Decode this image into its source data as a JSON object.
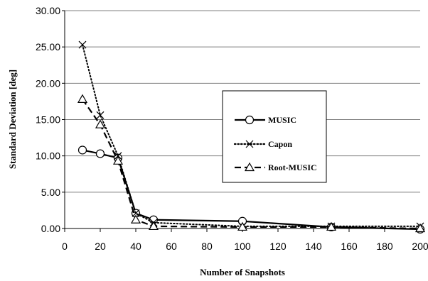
{
  "chart_data": {
    "type": "line",
    "title": "",
    "xlabel": "Number of Snapshots",
    "ylabel": "Standard  Deviation  [deg]",
    "xlim": [
      0,
      200
    ],
    "ylim": [
      0,
      30
    ],
    "xticks": [
      0,
      20,
      40,
      60,
      80,
      100,
      120,
      140,
      160,
      180,
      200
    ],
    "yticks": [
      0,
      5,
      10,
      15,
      20,
      25,
      30
    ],
    "xtick_labels": [
      "0",
      "20",
      "40",
      "60",
      "80",
      "100",
      "120",
      "140",
      "160",
      "180",
      "200"
    ],
    "ytick_labels": [
      "0.00",
      "5.00",
      "10.00",
      "15.00",
      "20.00",
      "25.00",
      "30.00"
    ],
    "grid": "horizontal",
    "legend_position": "right",
    "series": [
      {
        "name": "MUSIC",
        "marker": "circle",
        "dash": "solid",
        "x": [
          10,
          20,
          30,
          40,
          50,
          100,
          150,
          200
        ],
        "y": [
          10.8,
          10.3,
          9.7,
          2.1,
          1.2,
          1.0,
          0.2,
          -0.1
        ]
      },
      {
        "name": "Capon",
        "marker": "x",
        "dash": "dotted",
        "x": [
          10,
          20,
          30,
          40,
          50,
          100,
          150,
          200
        ],
        "y": [
          25.3,
          15.6,
          10.0,
          2.1,
          0.8,
          0.3,
          0.3,
          0.3
        ]
      },
      {
        "name": "Root-MUSIC",
        "marker": "triangle",
        "dash": "dashed",
        "x": [
          10,
          20,
          30,
          40,
          50,
          100,
          150,
          200
        ],
        "y": [
          17.8,
          14.3,
          9.3,
          1.2,
          0.3,
          0.2,
          0.2,
          0.0
        ]
      }
    ]
  }
}
